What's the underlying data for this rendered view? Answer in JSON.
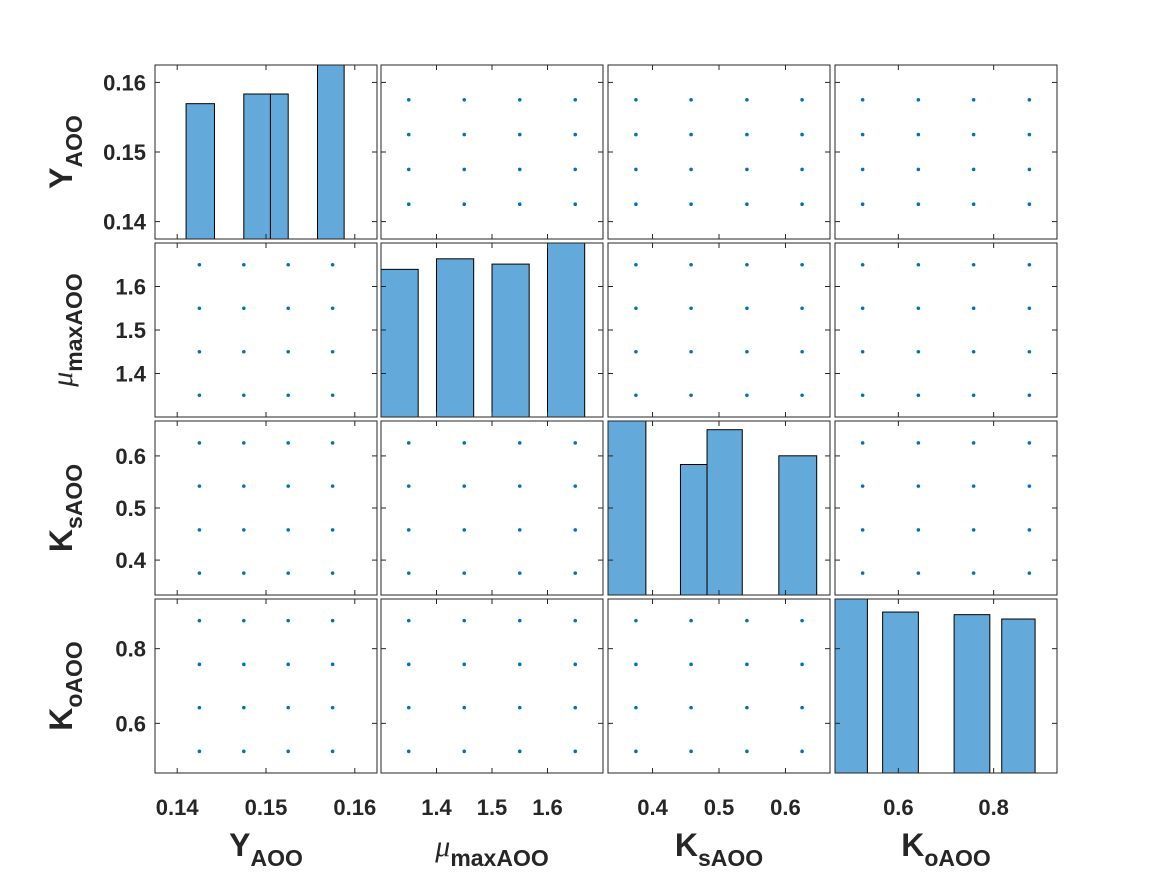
{
  "colors": {
    "bar_fill": "#63a9d9",
    "bar_edge": "#000000",
    "point": "#0072bd",
    "axes_edge": "#262626",
    "background": "#ffffff"
  },
  "chart_data": {
    "type": "scatter-matrix",
    "grid": false,
    "variables": [
      {
        "name": "Y",
        "subscript": "AOO",
        "greek": false,
        "levels": [
          0.1425,
          0.1475,
          0.1525,
          0.1575
        ],
        "lim": [
          0.1375,
          0.1625
        ],
        "ticks": [
          0.14,
          0.15,
          0.16
        ],
        "tick_labels": [
          "0.14",
          "0.15",
          "0.16"
        ]
      },
      {
        "name": "μ",
        "subscript": "maxAOO",
        "greek": true,
        "levels": [
          1.35,
          1.45,
          1.55,
          1.65
        ],
        "lim": [
          1.3,
          1.7
        ],
        "ticks": [
          1.4,
          1.5,
          1.6
        ],
        "tick_labels": [
          "1.4",
          "1.5",
          "1.6"
        ]
      },
      {
        "name": "K",
        "subscript": "sAOO",
        "greek": false,
        "levels": [
          0.375,
          0.458,
          0.542,
          0.625
        ],
        "lim": [
          0.333,
          0.667
        ],
        "ticks": [
          0.4,
          0.5,
          0.6
        ],
        "tick_labels": [
          "0.4",
          "0.5",
          "0.6"
        ]
      },
      {
        "name": "K",
        "subscript": "oAOO",
        "greek": false,
        "levels": [
          0.525,
          0.642,
          0.758,
          0.875
        ],
        "lim": [
          0.467,
          0.933
        ],
        "ticks": [
          0.6,
          0.8
        ],
        "tick_labels": [
          "0.6",
          "0.8"
        ]
      }
    ],
    "histograms": [
      {
        "variable": 0,
        "bins": [
          [
            0.141,
            0.1442
          ],
          [
            0.1475,
            0.1505
          ],
          [
            0.1505,
            0.1525
          ],
          [
            0.1558,
            0.1588
          ]
        ],
        "counts": [
          14,
          15,
          15,
          18
        ],
        "count_max": 18
      },
      {
        "variable": 1,
        "bins": [
          [
            1.3,
            1.367
          ],
          [
            1.4,
            1.467
          ],
          [
            1.5,
            1.567
          ],
          [
            1.6,
            1.667
          ]
        ],
        "counts": [
          14,
          15,
          14.5,
          16.5
        ],
        "count_max": 16.5
      },
      {
        "variable": 2,
        "bins": [
          [
            0.333,
            0.39
          ],
          [
            0.442,
            0.482
          ],
          [
            0.482,
            0.535
          ],
          [
            0.59,
            0.647
          ]
        ],
        "counts": [
          20,
          15,
          19,
          16
        ],
        "count_max": 20
      },
      {
        "variable": 3,
        "bins": [
          [
            0.467,
            0.535
          ],
          [
            0.567,
            0.642
          ],
          [
            0.717,
            0.792
          ],
          [
            0.817,
            0.887
          ]
        ],
        "counts": [
          20,
          18.5,
          18.2,
          17.7
        ],
        "count_max": 20
      }
    ]
  }
}
